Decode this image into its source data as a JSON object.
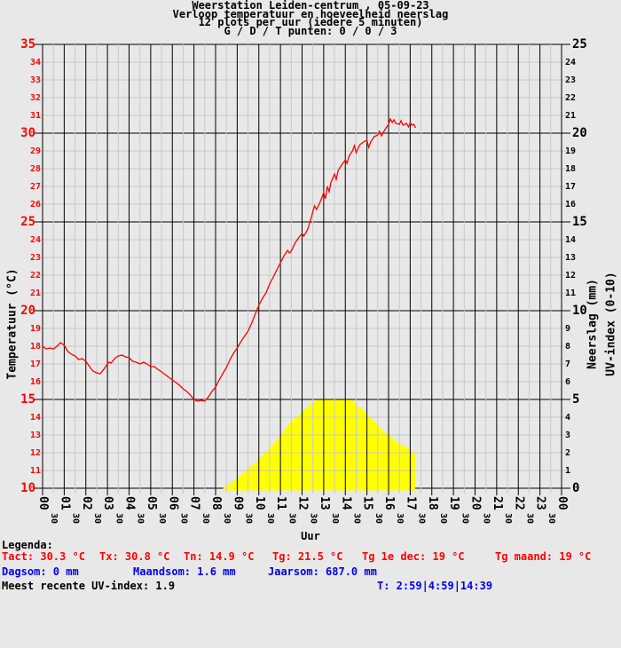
{
  "title": {
    "line1": "Weerstation Leiden-centrum , 05-09-23",
    "line2": "Verloop temperatuur en hoeveelheid neerslag",
    "line3": "12 plots per uur (iedere 5 minuten)",
    "line4": "G / D / T punten: 0 / 0 / 3"
  },
  "colors": {
    "background": "#e8e8e8",
    "grid_minor": "#c8c8c8",
    "grid_major": "#000000",
    "temperature": "#ff0000",
    "uv_area": "#ffff00",
    "legend_blue": "#0000ee",
    "text": "#000000"
  },
  "chart_data": {
    "type": "line",
    "x_axis": {
      "label": "Uur",
      "range_hours": [
        0,
        24
      ],
      "hour_labels": [
        "00",
        "01",
        "02",
        "03",
        "04",
        "05",
        "06",
        "07",
        "08",
        "09",
        "10",
        "11",
        "12",
        "13",
        "14",
        "15",
        "16",
        "17",
        "18",
        "19",
        "20",
        "21",
        "22",
        "23",
        "00"
      ],
      "minor_label": "30",
      "minor_step_hours": 0.5
    },
    "y_left": {
      "label": "Temperatuur (°C)",
      "range": [
        10,
        35
      ],
      "major_step": 5,
      "minor_step": 1,
      "tick_color": "#ff0000"
    },
    "y_right": {
      "labels": [
        "Neerslag (mm)",
        "UV-index (0-10)"
      ],
      "range": [
        0,
        25
      ],
      "major_step": 5,
      "minor_step": 1,
      "tick_color": "#000000"
    },
    "grid": "on",
    "series": [
      {
        "name": "temperatuur",
        "type": "line",
        "axis": "left",
        "color": "#ff0000",
        "points": [
          [
            0,
            18
          ],
          [
            0.17,
            17.85
          ],
          [
            0.33,
            17.9
          ],
          [
            0.5,
            17.85
          ],
          [
            0.67,
            18
          ],
          [
            0.83,
            18.2
          ],
          [
            1,
            18.05
          ],
          [
            1.17,
            17.7
          ],
          [
            1.33,
            17.55
          ],
          [
            1.5,
            17.45
          ],
          [
            1.67,
            17.25
          ],
          [
            1.83,
            17.3
          ],
          [
            2,
            17.15
          ],
          [
            2.17,
            16.85
          ],
          [
            2.33,
            16.6
          ],
          [
            2.5,
            16.5
          ],
          [
            2.67,
            16.45
          ],
          [
            2.83,
            16.7
          ],
          [
            3,
            17
          ],
          [
            3.08,
            17.1
          ],
          [
            3.17,
            17.05
          ],
          [
            3.33,
            17.3
          ],
          [
            3.5,
            17.45
          ],
          [
            3.67,
            17.5
          ],
          [
            3.83,
            17.4
          ],
          [
            4,
            17.35
          ],
          [
            4.17,
            17.15
          ],
          [
            4.33,
            17.1
          ],
          [
            4.5,
            17
          ],
          [
            4.67,
            17.1
          ],
          [
            4.83,
            17
          ],
          [
            5,
            16.85
          ],
          [
            5.17,
            16.85
          ],
          [
            5.33,
            16.7
          ],
          [
            5.5,
            16.55
          ],
          [
            5.67,
            16.4
          ],
          [
            5.83,
            16.25
          ],
          [
            6,
            16.1
          ],
          [
            6.17,
            15.95
          ],
          [
            6.33,
            15.8
          ],
          [
            6.5,
            15.6
          ],
          [
            6.67,
            15.45
          ],
          [
            6.83,
            15.25
          ],
          [
            7,
            15
          ],
          [
            7.08,
            14.95
          ],
          [
            7.17,
            14.9
          ],
          [
            7.33,
            14.95
          ],
          [
            7.5,
            14.9
          ],
          [
            7.67,
            15.15
          ],
          [
            7.83,
            15.45
          ],
          [
            8,
            15.7
          ],
          [
            8.17,
            16.1
          ],
          [
            8.33,
            16.45
          ],
          [
            8.5,
            16.8
          ],
          [
            8.67,
            17.25
          ],
          [
            8.83,
            17.6
          ],
          [
            9,
            17.9
          ],
          [
            9.17,
            18.25
          ],
          [
            9.33,
            18.55
          ],
          [
            9.5,
            18.85
          ],
          [
            9.67,
            19.3
          ],
          [
            9.83,
            19.8
          ],
          [
            10,
            20.3
          ],
          [
            10.17,
            20.7
          ],
          [
            10.33,
            21
          ],
          [
            10.5,
            21.5
          ],
          [
            10.67,
            21.9
          ],
          [
            10.83,
            22.3
          ],
          [
            11,
            22.7
          ],
          [
            11.17,
            23.1
          ],
          [
            11.33,
            23.4
          ],
          [
            11.42,
            23.25
          ],
          [
            11.5,
            23.35
          ],
          [
            11.67,
            23.8
          ],
          [
            11.83,
            24.1
          ],
          [
            12,
            24.35
          ],
          [
            12.08,
            24.2
          ],
          [
            12.25,
            24.55
          ],
          [
            12.42,
            25.2
          ],
          [
            12.5,
            25.6
          ],
          [
            12.58,
            25.9
          ],
          [
            12.67,
            25.7
          ],
          [
            12.83,
            26.1
          ],
          [
            13,
            26.65
          ],
          [
            13.08,
            26.3
          ],
          [
            13.17,
            27
          ],
          [
            13.25,
            26.7
          ],
          [
            13.33,
            27.2
          ],
          [
            13.5,
            27.7
          ],
          [
            13.58,
            27.4
          ],
          [
            13.67,
            27.9
          ],
          [
            13.83,
            28.2
          ],
          [
            14,
            28.5
          ],
          [
            14.08,
            28.3
          ],
          [
            14.17,
            28.7
          ],
          [
            14.33,
            29
          ],
          [
            14.42,
            29.3
          ],
          [
            14.5,
            28.9
          ],
          [
            14.67,
            29.35
          ],
          [
            14.83,
            29.5
          ],
          [
            15,
            29.6
          ],
          [
            15.08,
            29.2
          ],
          [
            15.17,
            29.5
          ],
          [
            15.33,
            29.8
          ],
          [
            15.5,
            29.9
          ],
          [
            15.58,
            30.1
          ],
          [
            15.67,
            29.85
          ],
          [
            15.83,
            30.2
          ],
          [
            16,
            30.5
          ],
          [
            16.08,
            30.8
          ],
          [
            16.17,
            30.6
          ],
          [
            16.25,
            30.75
          ],
          [
            16.33,
            30.55
          ],
          [
            16.5,
            30.5
          ],
          [
            16.58,
            30.7
          ],
          [
            16.67,
            30.45
          ],
          [
            16.83,
            30.55
          ],
          [
            16.92,
            30.35
          ],
          [
            17,
            30.6
          ],
          [
            17.08,
            30.45
          ],
          [
            17.17,
            30.5
          ],
          [
            17.25,
            30.3
          ]
        ]
      },
      {
        "name": "uv-index",
        "type": "area",
        "axis": "right",
        "color": "#ffff00",
        "points": [
          [
            8.35,
            0
          ],
          [
            8.7,
            0.3
          ],
          [
            9,
            0.55
          ],
          [
            9.5,
            1.1
          ],
          [
            9.9,
            1.5
          ],
          [
            10.3,
            2
          ],
          [
            10.9,
            2.8
          ],
          [
            11.4,
            3.65
          ],
          [
            12,
            4.3
          ],
          [
            12.4,
            4.75
          ],
          [
            12.67,
            5
          ],
          [
            14.3,
            5
          ],
          [
            14.5,
            4.75
          ],
          [
            14.9,
            4.3
          ],
          [
            15.3,
            3.8
          ],
          [
            15.7,
            3.3
          ],
          [
            16.1,
            2.9
          ],
          [
            16.5,
            2.5
          ],
          [
            16.9,
            2.25
          ],
          [
            17.23,
            1.95
          ]
        ]
      }
    ]
  },
  "legend": {
    "heading": "Legenda:",
    "temp_row": [
      "Tact: 30.3 °C",
      "Tx: 30.8 °C",
      "Tn: 14.9 °C",
      "Tg: 21.5 °C",
      "Tg 1e dec: 19 °C",
      "Tg maand: 19 °C"
    ],
    "rain_row": [
      "Dagsom: 0 mm",
      "Maandsom: 1.6 mm",
      "Jaarsom: 687.0 mm"
    ],
    "uv_text": "Meest recente UV-index: 1.9",
    "sun_times": "T: 2:59|4:59|14:39"
  }
}
